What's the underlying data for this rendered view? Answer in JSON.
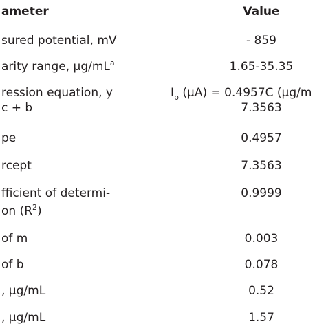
{
  "table": {
    "header": [
      "ameter",
      "Value"
    ],
    "rows": [
      {
        "parameter": [
          "sured potential, mV"
        ],
        "value": [
          "- 859"
        ]
      },
      {
        "parameter": [
          "arity range, µg/mL"
        ],
        "parameter_sup": "a",
        "value": [
          "1.65-35.35"
        ]
      },
      {
        "parameter": [
          "ression equation, y",
          "c + b"
        ],
        "value_main": "I",
        "value_sub": "p",
        "value": [
          " (µA) = 0.4957C (µg/m",
          "7.3563"
        ]
      },
      {
        "parameter": [
          "pe"
        ],
        "value": [
          "0.4957"
        ]
      },
      {
        "parameter": [
          "rcept"
        ],
        "value": [
          "7.3563"
        ]
      },
      {
        "parameter": [
          "fficient of determi-",
          "on (R"
        ],
        "parameter_sup": "2",
        "parameter_end": ")",
        "value": [
          "0.9999"
        ]
      },
      {
        "parameter": [
          "of m"
        ],
        "value": [
          "0.003"
        ]
      },
      {
        "parameter": [
          "of b"
        ],
        "value": [
          "0.078"
        ]
      },
      {
        "parameter": [
          ", µg/mL"
        ],
        "value": [
          "0.52"
        ]
      },
      {
        "parameter": [
          ", µg/mL"
        ],
        "value": [
          "1.57"
        ]
      }
    ]
  }
}
